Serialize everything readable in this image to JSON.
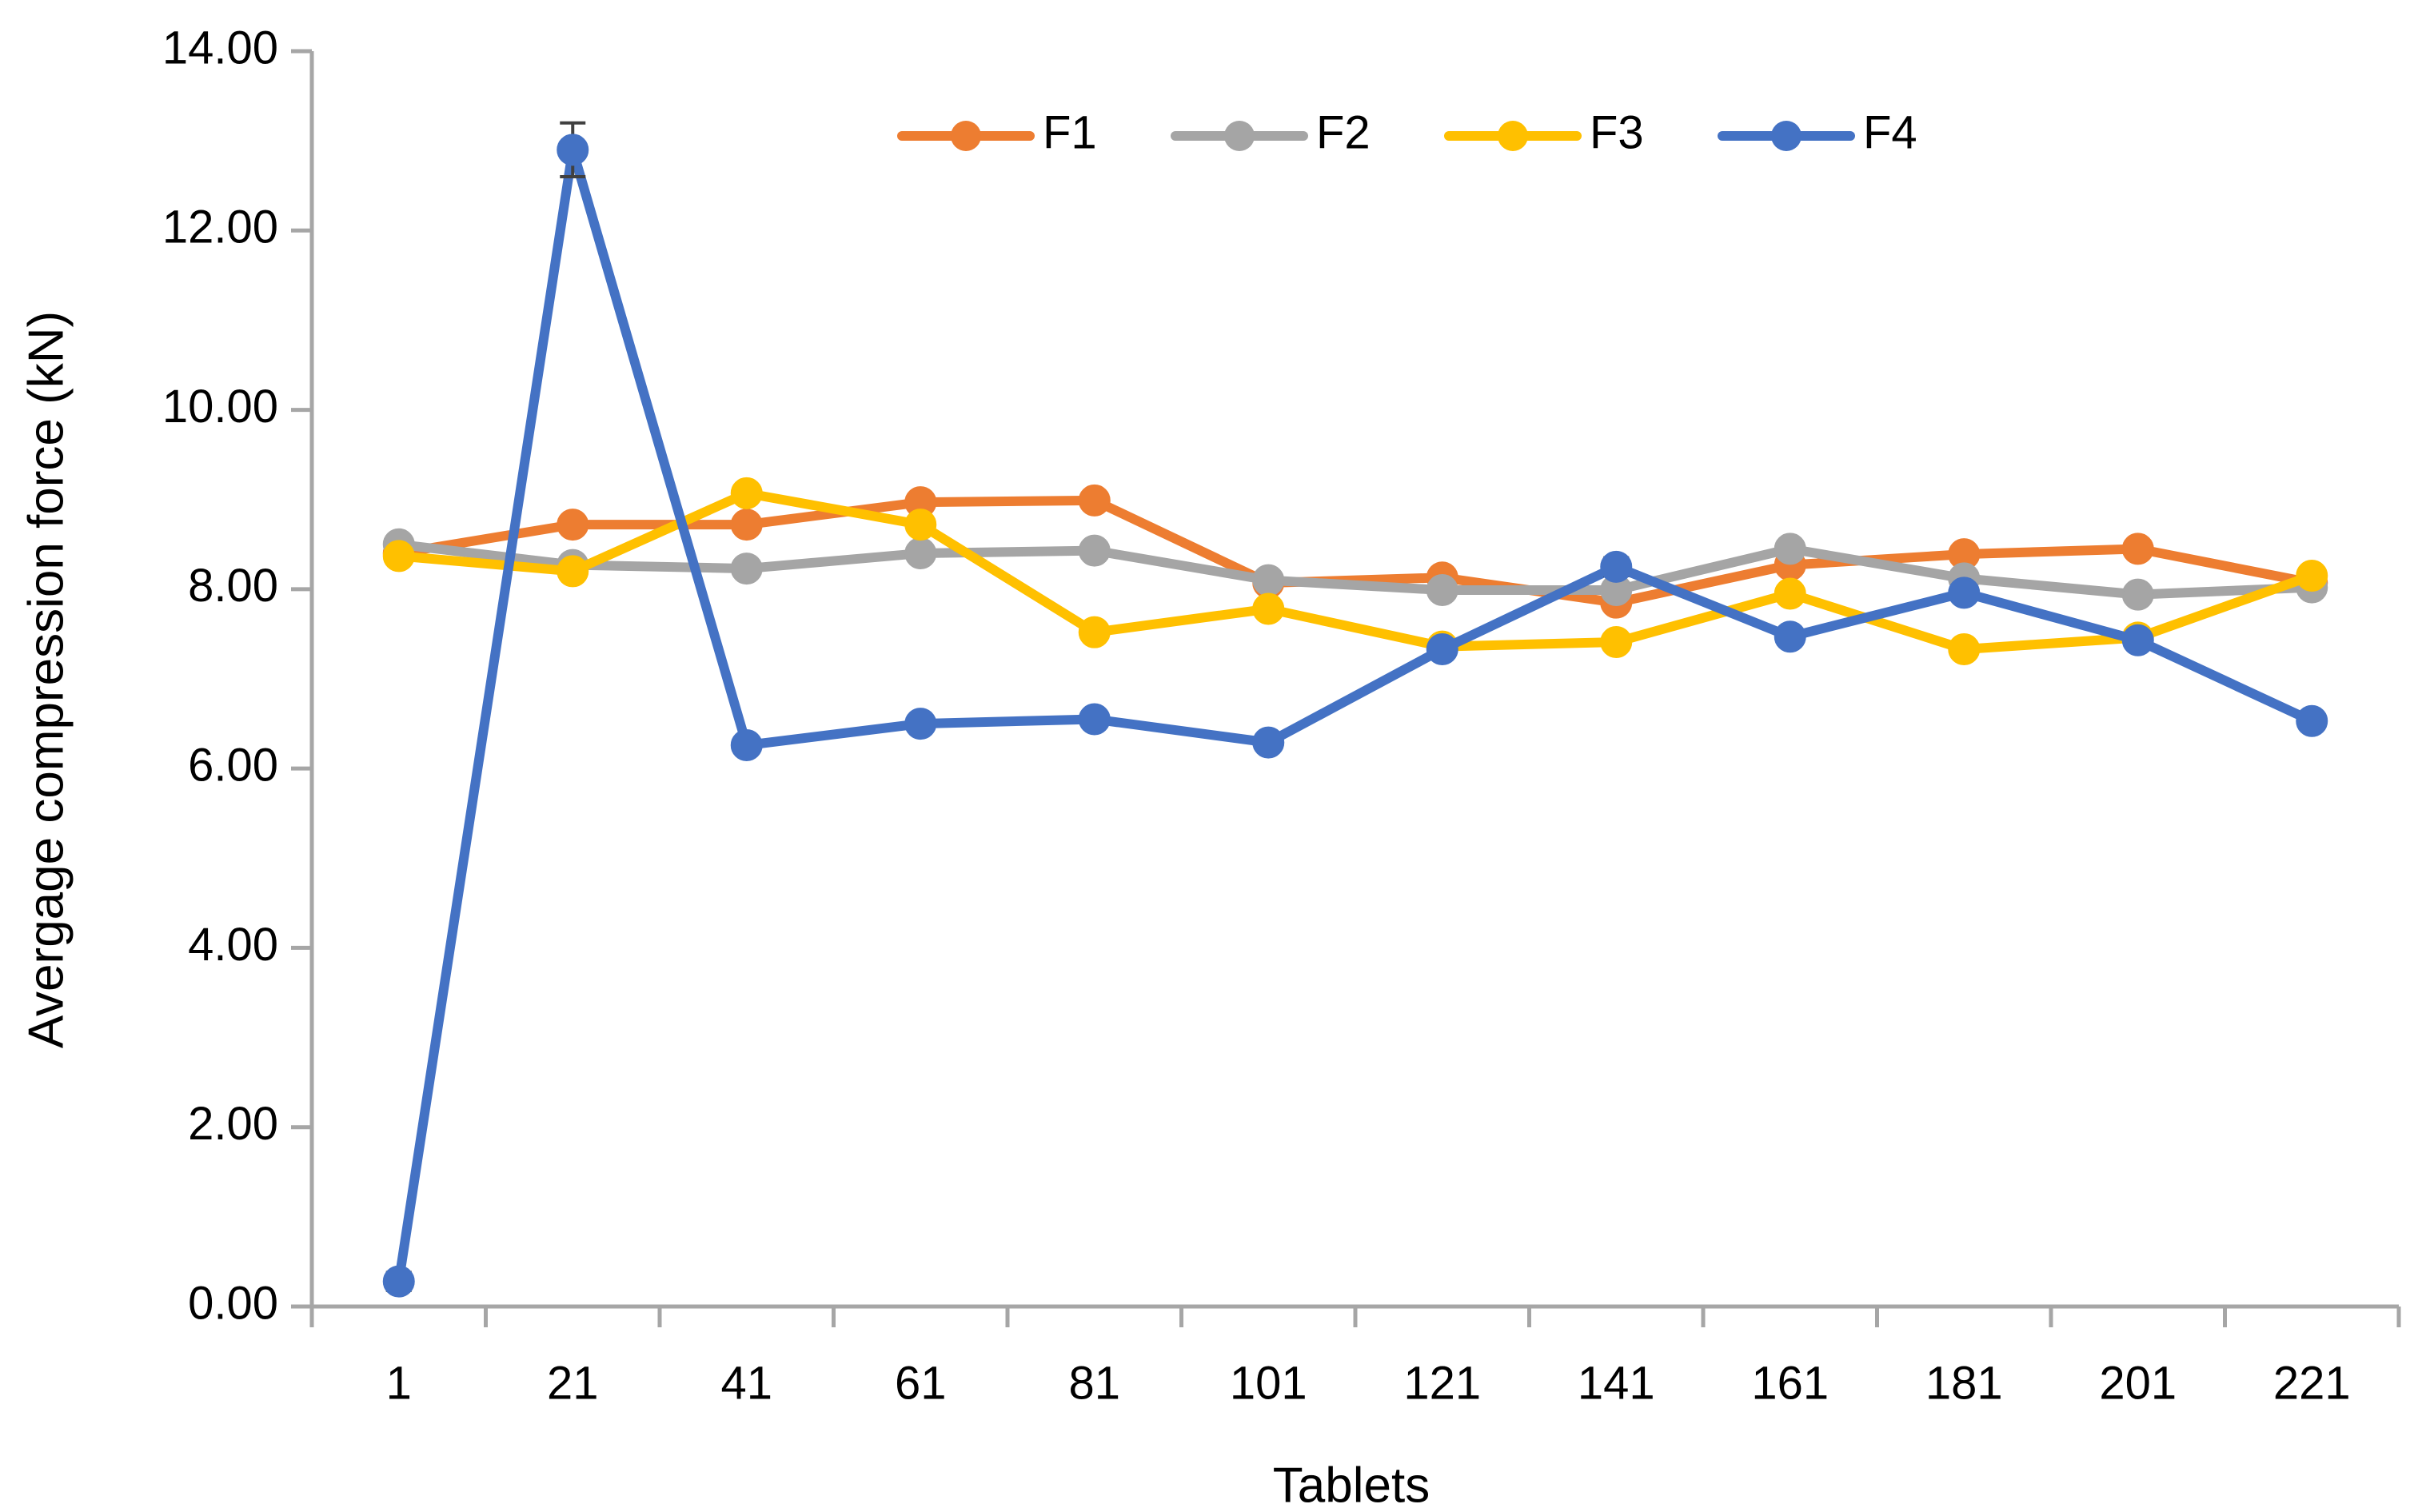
{
  "chart_data": {
    "type": "line",
    "title": "",
    "xlabel": "Tablets",
    "ylabel": "Avergage compression force (kN)",
    "categories": [
      "1",
      "21",
      "41",
      "61",
      "81",
      "101",
      "121",
      "141",
      "161",
      "181",
      "201",
      "221"
    ],
    "ylim": [
      0,
      14
    ],
    "ytick_labels": [
      "0.00",
      "2.00",
      "4.00",
      "6.00",
      "8.00",
      "10.00",
      "12.00",
      "14.00"
    ],
    "grid": false,
    "legend_position": "top-center",
    "series": [
      {
        "name": "F1",
        "color": "#ED7D31",
        "values": [
          8.4,
          8.72,
          8.72,
          8.97,
          8.99,
          8.07,
          8.13,
          7.85,
          8.27,
          8.39,
          8.45,
          8.07
        ]
      },
      {
        "name": "F2",
        "color": "#A5A5A5",
        "values": [
          8.5,
          8.27,
          8.23,
          8.4,
          8.43,
          8.1,
          7.99,
          7.99,
          8.45,
          8.12,
          7.94,
          8.02
        ]
      },
      {
        "name": "F3",
        "color": "#FFC000",
        "values": [
          8.37,
          8.2,
          9.07,
          8.72,
          7.52,
          7.78,
          7.36,
          7.41,
          7.95,
          7.33,
          7.46,
          8.15
        ]
      },
      {
        "name": "F4",
        "color": "#4472C4",
        "values": [
          0.28,
          12.9,
          6.26,
          6.5,
          6.55,
          6.29,
          7.33,
          8.25,
          7.47,
          7.96,
          7.43,
          6.53
        ],
        "error": [
          0.1,
          0.3,
          0.05,
          0.05,
          0.05,
          0.05,
          0.05,
          0.1,
          0.05,
          0.05,
          0.05,
          0.05
        ]
      }
    ],
    "axis_color": "#A6A6A6"
  }
}
